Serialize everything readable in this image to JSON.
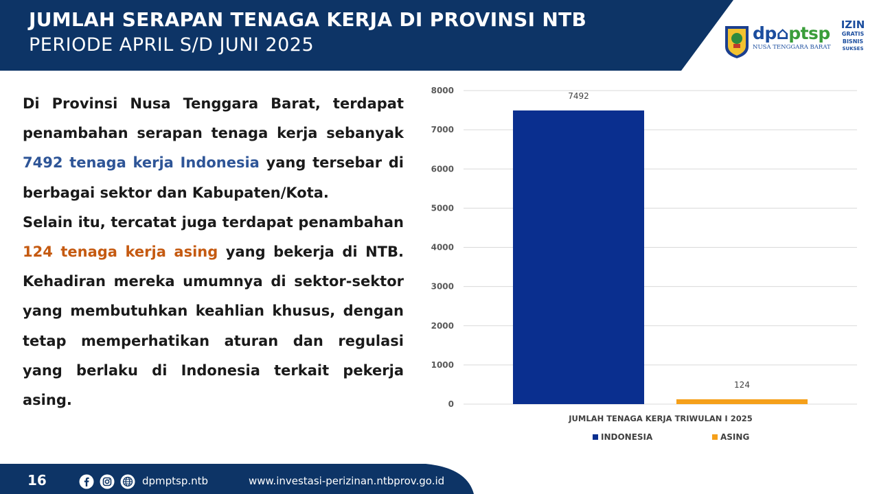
{
  "header": {
    "title": "JUMLAH SERAPAN TENAGA KERJA DI PROVINSI NTB",
    "subtitle": "PERIODE APRIL S/D JUNI 2025",
    "logos": {
      "dpm_main_a": "dp",
      "dpm_main_b": "ptsp",
      "dpm_sub": "NUSA TENGGARA BARAT",
      "izin_lines": [
        "IZIN",
        "GRATIS",
        "BISNIS",
        "SUKSES"
      ]
    },
    "colors": {
      "banner": "#0d3466",
      "accent_blue": "#2e5597",
      "accent_orange": "#c55a11"
    }
  },
  "body": {
    "p1_a": "Di Provinsi Nusa Tenggara Barat, terdapat penambahan serapan tenaga kerja sebanyak ",
    "p1_highlight": "7492 tenaga kerja Indonesia",
    "p1_b": " yang tersebar di berbagai sektor dan Kabupaten/Kota.",
    "p2_a": "Selain itu, tercatat juga terdapat penambahan ",
    "p2_highlight": "124 tenaga kerja asing",
    "p2_b": " yang bekerja di NTB. Kehadiran mereka umumnya di sektor-sektor yang membutuhkan keahlian khusus, dengan tetap memperhatikan aturan dan regulasi yang berlaku di Indonesia terkait pekerja asing."
  },
  "chart_data": {
    "type": "bar",
    "categories": [
      "JUMLAH TENAGA KERJA TRIWULAN I 2025"
    ],
    "series": [
      {
        "name": "INDONESIA",
        "values": [
          7492
        ],
        "color": "#0a2f8f"
      },
      {
        "name": "ASING",
        "values": [
          124
        ],
        "color": "#f5a01a"
      }
    ],
    "title": "",
    "xlabel": "JUMLAH TENAGA KERJA TRIWULAN I 2025",
    "ylabel": "",
    "ylim": [
      0,
      8000
    ],
    "yticks": [
      "0",
      "1000",
      "2000",
      "3000",
      "4000",
      "5000",
      "6000",
      "7000",
      "8000"
    ],
    "data_labels": [
      "7492",
      "124"
    ],
    "grid": true,
    "legend": "bottom"
  },
  "footer": {
    "page_number": "16",
    "icons": [
      "facebook-icon",
      "instagram-icon",
      "globe-icon"
    ],
    "handle": "dpmptsp.ntb",
    "website": "www.investasi-perizinan.ntbprov.go.id"
  }
}
